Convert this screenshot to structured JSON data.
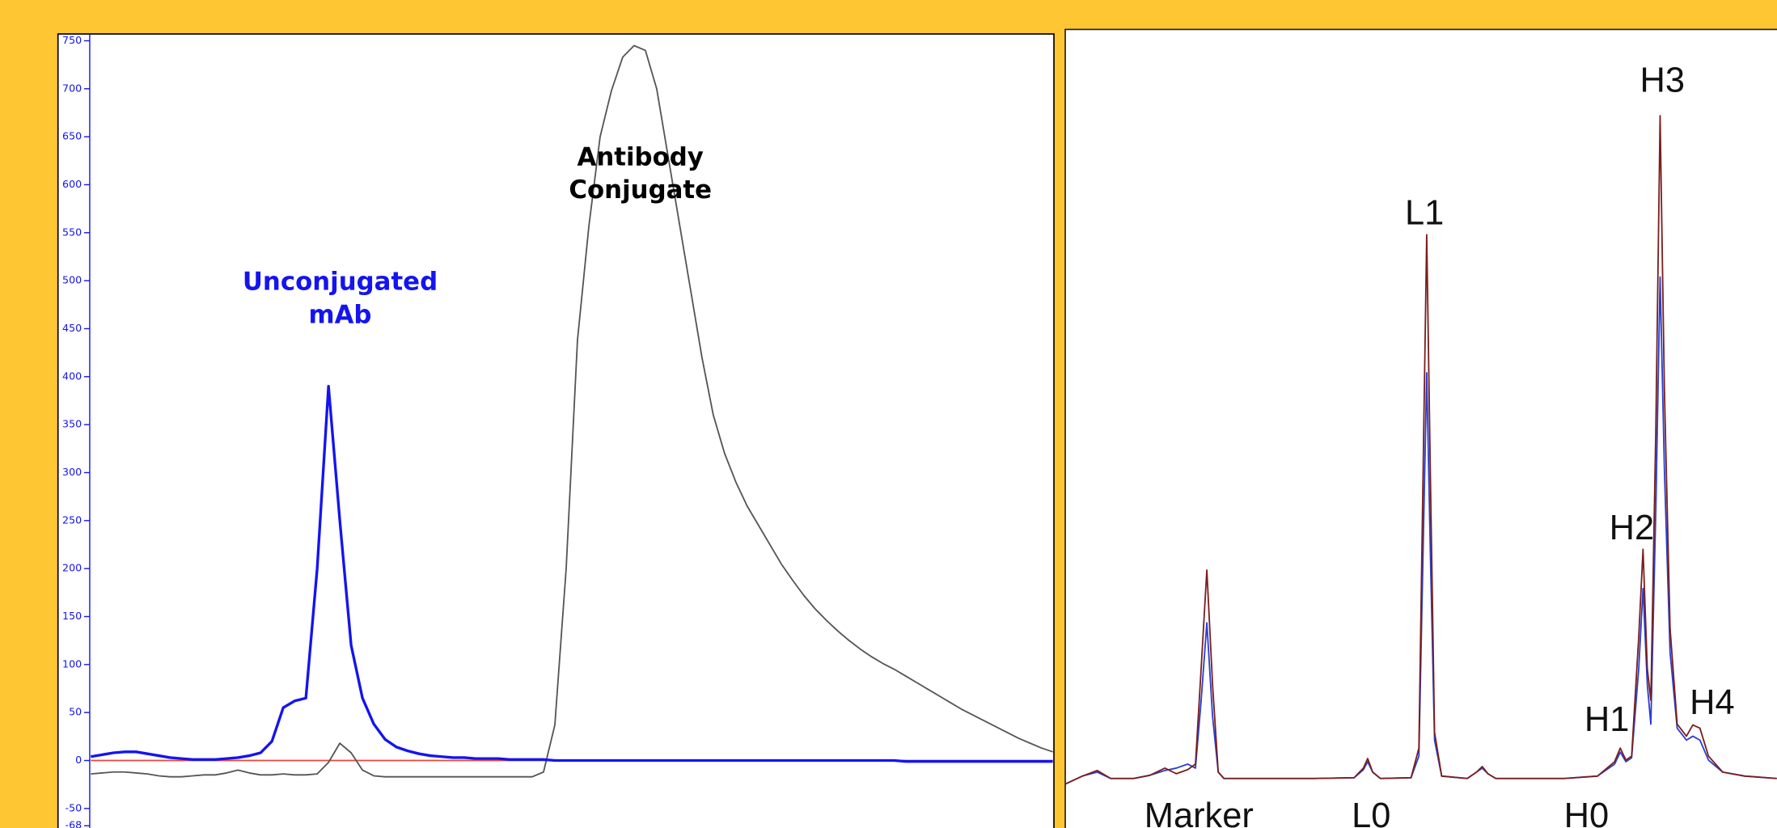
{
  "chart_data": [
    {
      "type": "line",
      "categories": [
        null,
        null,
        null,
        null,
        null,
        null,
        null,
        null,
        null,
        null,
        null,
        null,
        null,
        null,
        null,
        null,
        null,
        null,
        null,
        null,
        null,
        null,
        null,
        null,
        null,
        null,
        null,
        null,
        null,
        null,
        null,
        null,
        null,
        null,
        null,
        null,
        null,
        null,
        null,
        null,
        null,
        null,
        null,
        null,
        null,
        null,
        null,
        null,
        null,
        null,
        null,
        null,
        null,
        null,
        null,
        null,
        null,
        null,
        null,
        null,
        null,
        null,
        null,
        null,
        null,
        null,
        null,
        null,
        null,
        null,
        null,
        null,
        null,
        null,
        null,
        null,
        null,
        null,
        null,
        null,
        null,
        null,
        null,
        null,
        null,
        null
      ],
      "series": [
        {
          "color": "#1414f0",
          "values": [
            4,
            6,
            8,
            9,
            9,
            7,
            5,
            3,
            2,
            1,
            1,
            1,
            2,
            3,
            5,
            8,
            20,
            55,
            62,
            65,
            200,
            390,
            250,
            120,
            65,
            38,
            22,
            14,
            10,
            7,
            5,
            4,
            3,
            3,
            2,
            2,
            2,
            1,
            1,
            1,
            1,
            0,
            0,
            0,
            0,
            0,
            0,
            0,
            0,
            0,
            0,
            0,
            0,
            0,
            0,
            0,
            0,
            0,
            0,
            0,
            0,
            0,
            0,
            0,
            0,
            0,
            0,
            0,
            0,
            0,
            0,
            0,
            -1,
            -1,
            -1,
            -1,
            -1,
            -1,
            -1,
            -1,
            -1,
            -1,
            -1,
            -1,
            -1,
            -1
          ]
        },
        {
          "color": "#555555",
          "values": [
            -14,
            -13,
            -12,
            -12,
            -13,
            -14,
            -16,
            -17,
            -17,
            -16,
            -15,
            -15,
            -13,
            -10,
            -13,
            -15,
            -15,
            -14,
            -15,
            -15,
            -14,
            -2,
            18,
            8,
            -10,
            -16,
            -17,
            -17,
            -17,
            -17,
            -17,
            -17,
            -17,
            -17,
            -17,
            -17,
            -17,
            -17,
            -17,
            -17,
            -12,
            37,
            200,
            438,
            556,
            650,
            698,
            733,
            745,
            740,
            700,
            630,
            560,
            490,
            420,
            360,
            320,
            290,
            265,
            245,
            225,
            205,
            188,
            172,
            158,
            146,
            135,
            125,
            116,
            108,
            101,
            95,
            88,
            81,
            74,
            67,
            60,
            53,
            47,
            41,
            35,
            29,
            23,
            18,
            13,
            9
          ]
        }
      ],
      "ylim": [
        -68,
        750
      ],
      "yticks": [
        750,
        700,
        650,
        600,
        550,
        500,
        450,
        400,
        350,
        300,
        250,
        200,
        150,
        100,
        50,
        0,
        -50,
        -68
      ],
      "reference_line": {
        "value": 0,
        "color": "#e8463a"
      },
      "annotations": [
        {
          "lines": [
            "Unconjugated",
            "mAb"
          ],
          "color": "#1414f0"
        },
        {
          "lines": [
            "Antibody",
            "Conjugate"
          ],
          "color": "#000000"
        }
      ]
    },
    {
      "type": "line",
      "x": [
        0,
        2.4,
        4.5,
        6.4,
        9.6,
        11.9,
        14.0,
        15.6,
        17.2,
        18.3,
        19.1,
        19.9,
        20.7,
        21.5,
        22.3,
        28.7,
        35.0,
        40.6,
        41.9,
        42.5,
        43.2,
        44.3,
        48.6,
        49.7,
        50.3,
        50.8,
        51.3,
        51.9,
        52.9,
        56.5,
        57.8,
        58.6,
        59.4,
        60.5,
        70.1,
        74.8,
        77.2,
        78.0,
        78.8,
        79.6,
        80.6,
        81.2,
        81.8,
        82.3,
        83.0,
        83.6,
        84.2,
        85.0,
        86.0,
        87.3,
        88.2,
        89.2,
        90.4,
        92.4,
        95.5,
        100
      ],
      "xlim": [
        0,
        100
      ],
      "ylim": [
        0,
        100
      ],
      "series": [
        {
          "color": "#7a1f1f",
          "values": [
            5.5,
            6.5,
            7.2,
            6.2,
            6.2,
            6.6,
            7.5,
            6.8,
            7.3,
            8,
            20,
            32.3,
            18,
            7,
            6.2,
            6.2,
            6.2,
            6.3,
            7.5,
            8.7,
            7,
            6.2,
            6.3,
            10,
            45,
            74.3,
            45,
            12,
            6.5,
            6.2,
            7,
            7.7,
            6.8,
            6.2,
            6.2,
            6.5,
            8.3,
            10,
            8.5,
            9,
            24,
            34.9,
            20,
            16,
            50,
            89.2,
            55,
            25,
            13,
            11.5,
            12.9,
            12.5,
            9,
            7,
            6.5,
            6.2
          ]
        },
        {
          "color": "#2a3fd0",
          "values": [
            5.5,
            6.5,
            7.0,
            6.2,
            6.2,
            6.6,
            7.2,
            7.5,
            8,
            7.5,
            16,
            25.7,
            14,
            7,
            6.2,
            6.2,
            6.2,
            6.3,
            7.3,
            8.3,
            7,
            6.2,
            6.3,
            9,
            35,
            57,
            35,
            11,
            6.5,
            6.2,
            7,
            7.5,
            6.8,
            6.2,
            6.2,
            6.5,
            8,
            9.5,
            8.3,
            8.8,
            20,
            30,
            18,
            13,
            40,
            69,
            45,
            22,
            12.5,
            11,
            11.5,
            11,
            8.5,
            7,
            6.5,
            6.2
          ]
        }
      ],
      "peak_labels": [
        "H3",
        "L1",
        "H2",
        "H1",
        "H4",
        "Marker",
        "L0",
        "H0"
      ]
    }
  ]
}
